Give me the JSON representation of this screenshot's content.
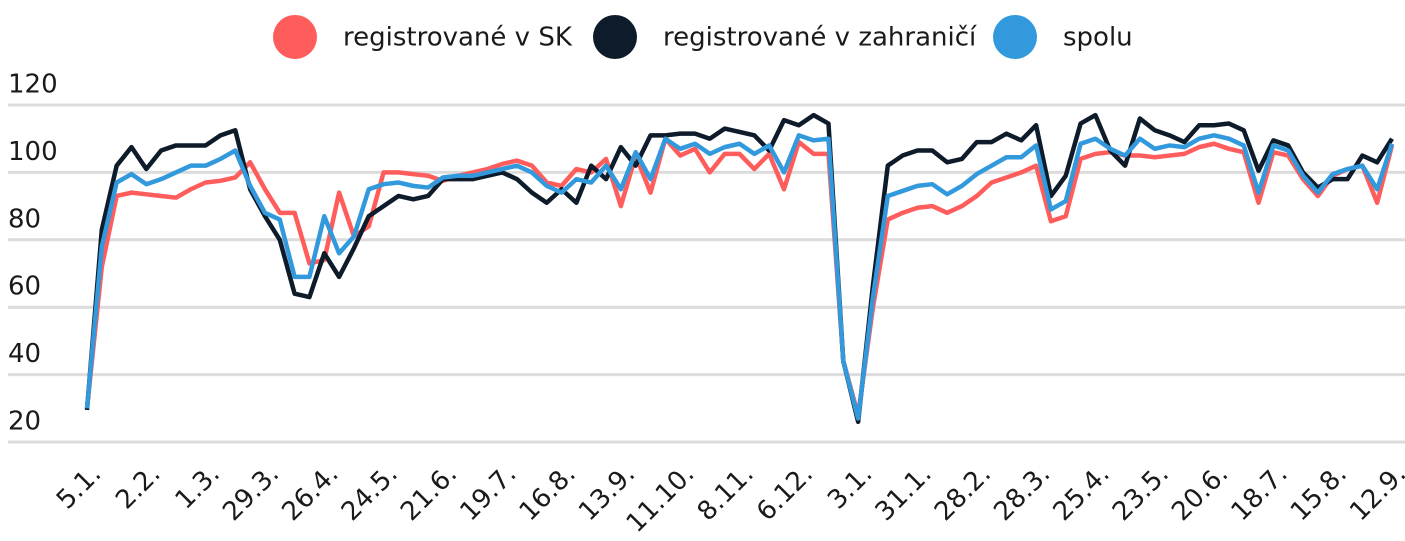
{
  "chart_data": {
    "type": "line",
    "categories": [
      "5.1.",
      null,
      null,
      null,
      "2.2.",
      null,
      null,
      null,
      "1.3.",
      null,
      null,
      null,
      "29.3.",
      null,
      null,
      null,
      "26.4.",
      null,
      null,
      null,
      "24.5.",
      null,
      null,
      null,
      "21.6.",
      null,
      null,
      null,
      "19.7.",
      null,
      null,
      null,
      "16.8.",
      null,
      null,
      null,
      "13.9.",
      null,
      null,
      null,
      "11.10.",
      null,
      null,
      null,
      "8.11.",
      null,
      null,
      null,
      "6.12.",
      null,
      null,
      null,
      "3.1.",
      null,
      null,
      null,
      "31.1.",
      null,
      null,
      null,
      "28.2.",
      null,
      null,
      null,
      "28.3.",
      null,
      null,
      null,
      "25.4.",
      null,
      null,
      null,
      "23.5.",
      null,
      null,
      null,
      "20.6.",
      null,
      null,
      null,
      "18.7.",
      null,
      null,
      null,
      "15.8.",
      null,
      null,
      null,
      "12.9."
    ],
    "series": [
      {
        "name": "registrované v SK",
        "color": "#ff5c5c",
        "values": [
          30,
          72,
          93,
          94,
          93.5,
          93,
          92.5,
          95,
          97,
          97.5,
          98.5,
          103,
          95,
          88,
          88,
          73,
          74,
          94,
          81,
          84,
          100,
          100,
          99.5,
          99,
          97.5,
          99,
          100,
          101,
          102.5,
          103.5,
          102,
          97,
          96,
          101,
          100,
          104,
          90,
          105,
          94,
          110,
          105,
          107,
          100,
          105.5,
          105.5,
          101,
          105.5,
          95,
          109,
          105.5,
          105.5,
          44,
          28,
          60,
          86,
          88,
          89.5,
          90,
          88,
          90,
          93,
          97,
          98.5,
          100,
          102,
          85.5,
          87,
          104,
          105.5,
          106,
          105,
          105,
          104.5,
          105,
          105.5,
          107.5,
          108.5,
          107,
          106,
          91,
          106,
          105,
          98,
          93,
          99,
          101,
          102,
          91,
          108
        ]
      },
      {
        "name": "registrované v zahraničí",
        "color": "#0d1b2a",
        "values": [
          29.5,
          83,
          102,
          107.5,
          101,
          106.5,
          108,
          108,
          108,
          111,
          112.5,
          95,
          87,
          80,
          64,
          63,
          76,
          69,
          77.5,
          87,
          90,
          93,
          92,
          93,
          98,
          98,
          98,
          99,
          100,
          98,
          94,
          91,
          95,
          91,
          102,
          98,
          107.5,
          102,
          111,
          111,
          111.5,
          111.5,
          110,
          113,
          112,
          111,
          106.5,
          115.5,
          114,
          117,
          114.5,
          44,
          26,
          66.5,
          102,
          105,
          106.5,
          106.5,
          103,
          104,
          109,
          109,
          111.5,
          109.5,
          114,
          93,
          99,
          114.5,
          117,
          106.5,
          102,
          116,
          112.5,
          111,
          109,
          114,
          114,
          114.5,
          112.5,
          100.5,
          109.5,
          108,
          100,
          95.5,
          98,
          98,
          105,
          103,
          110
        ]
      },
      {
        "name": "spolu",
        "color": "#3399dd",
        "values": [
          30,
          78,
          97,
          99.5,
          96.5,
          98,
          100,
          102,
          102,
          104,
          106.5,
          96,
          88,
          86,
          69,
          69,
          87,
          76,
          81,
          95,
          96.5,
          97,
          96,
          95.5,
          98.5,
          99,
          99,
          100,
          101,
          102,
          100,
          96,
          94,
          98,
          97,
          102,
          95,
          106,
          98,
          110,
          107,
          108.5,
          105.5,
          107.5,
          108.5,
          105.5,
          108,
          100,
          111,
          109.5,
          110,
          44,
          27,
          63,
          93,
          94.5,
          96,
          96.5,
          93.5,
          96,
          99.5,
          102,
          104.5,
          104.5,
          108,
          89,
          91.5,
          108.5,
          110,
          107,
          105,
          110,
          107,
          108,
          107.5,
          110,
          111,
          110,
          108,
          94,
          108,
          106.5,
          99,
          94,
          99.5,
          101,
          102,
          95,
          108.5
        ]
      }
    ],
    "ylim": [
      20,
      120
    ],
    "yticks": [
      20,
      40,
      60,
      80,
      100,
      120
    ],
    "grid": true,
    "legend": "top"
  }
}
